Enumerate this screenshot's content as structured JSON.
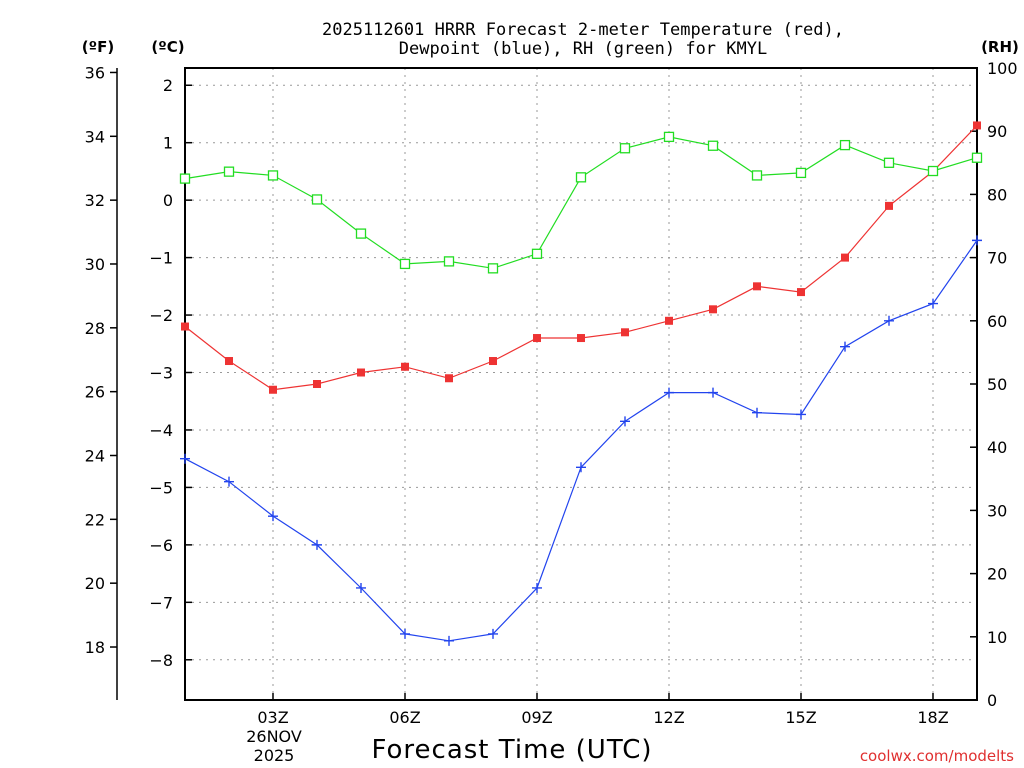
{
  "chart_data": {
    "type": "line",
    "title_line1": "2025112601 HRRR Forecast 2-meter Temperature (red),",
    "title_line2": "Dewpoint (blue), RH (green) for KMYL",
    "xlabel": "Forecast Time (UTC)",
    "credit": "coolwx.com/modelts",
    "units": {
      "fahrenheit": "(ºF)",
      "celsius": "(ºC)",
      "rh": "(RH)"
    },
    "date_label": [
      "26NOV",
      "2025"
    ],
    "x": [
      1,
      2,
      3,
      4,
      5,
      6,
      7,
      8,
      9,
      10,
      11,
      12,
      13,
      14,
      15,
      16,
      17,
      18,
      19
    ],
    "x_range": [
      1,
      19
    ],
    "x_ticks": [
      {
        "x": 3,
        "label": "03Z"
      },
      {
        "x": 6,
        "label": "06Z"
      },
      {
        "x": 9,
        "label": "09Z"
      },
      {
        "x": 12,
        "label": "12Z"
      },
      {
        "x": 15,
        "label": "15Z"
      },
      {
        "x": 18,
        "label": "18Z"
      }
    ],
    "celsius_range": [
      -8.7,
      2.3
    ],
    "celsius_ticks": [
      2,
      1,
      0,
      -1,
      -2,
      -3,
      -4,
      -5,
      -6,
      -7,
      -8
    ],
    "fahrenheit_range": [
      16.34,
      36.14
    ],
    "fahrenheit_ticks": [
      36,
      34,
      32,
      30,
      28,
      26,
      24,
      22,
      20,
      18
    ],
    "rh_range": [
      0,
      100
    ],
    "rh_ticks": [
      100,
      90,
      80,
      70,
      60,
      50,
      40,
      30,
      20,
      10,
      0
    ],
    "series": [
      {
        "name": "Temperature",
        "axis": "celsius",
        "color": "#ee3333",
        "marker": "filled-square",
        "values": [
          -2.2,
          -2.8,
          -3.3,
          -3.2,
          -3.0,
          -2.9,
          -3.1,
          -2.8,
          -2.4,
          -2.4,
          -2.3,
          -2.1,
          -1.9,
          -1.5,
          -1.6,
          -1.0,
          -0.1,
          0.5,
          1.3
        ]
      },
      {
        "name": "Dewpoint",
        "axis": "celsius",
        "color": "#2244ee",
        "marker": "plus",
        "values": [
          -4.5,
          -4.9,
          -5.5,
          -6.0,
          -6.75,
          -7.55,
          -7.67,
          -7.55,
          -6.75,
          -4.65,
          -3.85,
          -3.35,
          -3.35,
          -3.7,
          -3.73,
          -2.55,
          -2.1,
          -1.8,
          -0.7
        ]
      },
      {
        "name": "RH",
        "axis": "rh",
        "color": "#22dd22",
        "marker": "open-square",
        "values": [
          82.5,
          83.6,
          83.0,
          79.2,
          73.8,
          69.0,
          69.4,
          68.3,
          70.6,
          82.7,
          87.3,
          89.1,
          87.7,
          83.0,
          83.4,
          87.8,
          85.0,
          83.7,
          85.8
        ]
      }
    ]
  }
}
